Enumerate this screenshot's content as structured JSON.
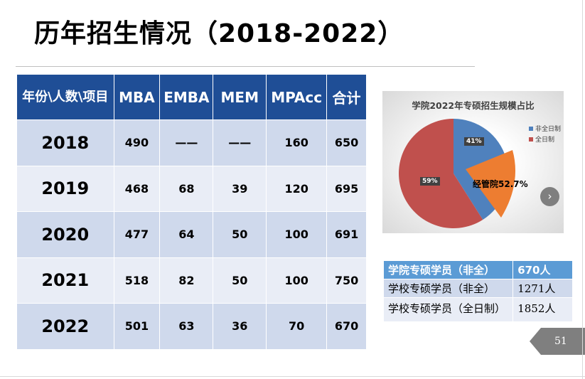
{
  "title": "历年招生情况（2018-2022）",
  "table": {
    "headers": [
      "年份\\人数\\项目",
      "MBA",
      "EMBA",
      "MEM",
      "MPAcc",
      "合计"
    ],
    "rows": [
      [
        "2018",
        "490",
        "——",
        "——",
        "160",
        "650"
      ],
      [
        "2019",
        "468",
        "68",
        "39",
        "120",
        "695"
      ],
      [
        "2020",
        "477",
        "64",
        "50",
        "100",
        "691"
      ],
      [
        "2021",
        "518",
        "82",
        "50",
        "100",
        "750"
      ],
      [
        "2022",
        "501",
        "63",
        "36",
        "70",
        "670"
      ]
    ]
  },
  "chart_data": {
    "type": "pie",
    "title": "学院2022年专硕招生规模占比",
    "categories": [
      "非全日制",
      "全日制"
    ],
    "values": [
      41,
      59
    ],
    "labels": [
      "41%",
      "59%"
    ],
    "colors": [
      "#4f81bd",
      "#c0504d"
    ],
    "legend_position": "right",
    "annotation": {
      "text": "经管院52.7%",
      "color": "#ed7d31"
    }
  },
  "next_button": "›",
  "side_table": {
    "rows": [
      [
        "学院专硕学员（非全）",
        "670人"
      ],
      [
        "学校专硕学员（非全）",
        "1271人"
      ],
      [
        "学校专硕学员（全日制）",
        "1852人"
      ]
    ]
  },
  "page_number": "51"
}
